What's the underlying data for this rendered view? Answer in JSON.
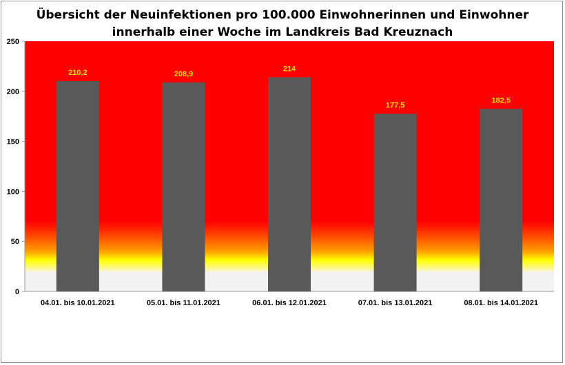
{
  "chart_data": {
    "type": "bar",
    "title_lines": [
      "Übersicht der Neuinfektionen pro 100.000 Einwohnerinnen und Einwohner",
      "innerhalb einer Woche im Landkreis Bad Kreuznach"
    ],
    "categories": [
      "04.01. bis 10.01.2021",
      "05.01. bis 11.01.2021",
      "06.01. bis 12.01.2021",
      "07.01. bis 13.01.2021",
      "08.01. bis 14.01.2021"
    ],
    "values": [
      210.2,
      208.9,
      214,
      177.5,
      182.5
    ],
    "value_labels": [
      "210,2",
      "208,9",
      "214",
      "177,5",
      "182,5"
    ],
    "y_ticks": [
      "0",
      "50",
      "100",
      "150",
      "200",
      "250"
    ],
    "ylim": [
      0,
      250
    ],
    "xlabel": "",
    "ylabel": "",
    "legend": "none",
    "grid": false,
    "colors": {
      "bar": "#595959",
      "value_label": "#ffe100",
      "background_red": "#ff0000",
      "background_yellow": "#ffff00",
      "background_grey": "#f2f2f2"
    }
  }
}
